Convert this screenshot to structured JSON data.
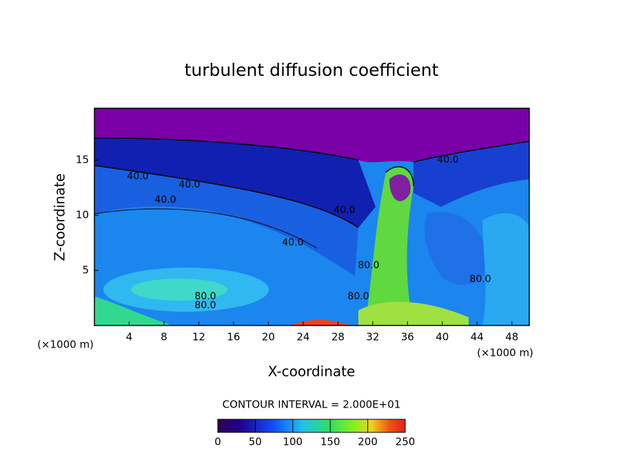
{
  "chart_data": {
    "type": "contour",
    "title": "turbulent diffusion coefficient",
    "x_label": "X-coordinate",
    "y_label": "Z-coordinate",
    "x_unit_labels": [
      "(×1000 m)",
      "(×1000 m)"
    ],
    "xlim": [
      0,
      50
    ],
    "xticks": [
      4,
      8,
      12,
      16,
      20,
      24,
      28,
      32,
      36,
      40,
      44,
      48
    ],
    "ylim": [
      0,
      19.7
    ],
    "yticks": [
      5,
      10,
      15
    ],
    "contour_labels": [
      "40.0",
      "40.0",
      "40.0",
      "40.0",
      "40.0",
      "40.0",
      "80.0",
      "80.0",
      "80.0",
      "80.0",
      "80.0"
    ],
    "colorbar_title": "CONTOUR INTERVAL = 2.000E+01",
    "colorbar_lim": [
      0,
      250
    ],
    "colorbar_ticks": [
      0,
      50,
      100,
      150,
      200,
      250
    ]
  }
}
